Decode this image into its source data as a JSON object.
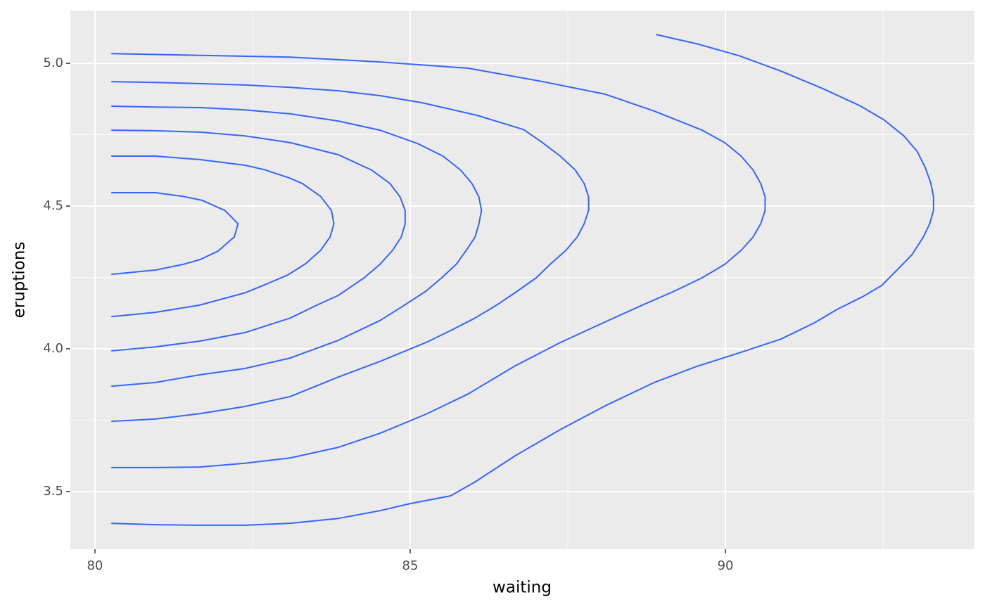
{
  "chart_data": {
    "type": "contour",
    "x_label": "waiting",
    "y_label": "eruptions",
    "color": "#3366FF",
    "xlim": [
      79.61,
      93.95
    ],
    "ylim": [
      3.298,
      5.185
    ],
    "xticks": [
      80,
      85,
      90
    ],
    "yticks": [
      3.5,
      {
        "value": 4,
        "label": "4.0"
      },
      4.5,
      {
        "value": 5,
        "label": "5.0"
      }
    ],
    "x_minor_breaks": [
      82.5,
      87.5,
      92.5
    ],
    "y_minor_breaks": [
      3.75,
      4.25,
      4.75
    ],
    "grid": true,
    "series": [
      {
        "x": [
          80.26,
          80.96,
          81.4,
          81.7,
          82.06,
          82.27,
          82.21,
          81.95,
          81.67,
          81.4,
          80.96,
          80.26
        ],
        "y": [
          4.547,
          4.547,
          4.534,
          4.52,
          4.485,
          4.438,
          4.392,
          4.342,
          4.313,
          4.296,
          4.276,
          4.261
        ]
      },
      {
        "x": [
          80.26,
          80.96,
          81.66,
          82.38,
          82.68,
          83.08,
          83.29,
          83.58,
          83.75,
          83.79,
          83.73,
          83.58,
          83.34,
          83.06,
          82.69,
          82.39,
          81.66,
          80.96,
          80.26
        ],
        "y": [
          4.675,
          4.675,
          4.663,
          4.643,
          4.628,
          4.599,
          4.579,
          4.534,
          4.485,
          4.438,
          4.392,
          4.345,
          4.298,
          4.259,
          4.224,
          4.197,
          4.153,
          4.128,
          4.113
        ]
      },
      {
        "x": [
          80.26,
          80.96,
          81.66,
          82.38,
          83.1,
          83.86,
          84.39,
          84.68,
          84.84,
          84.92,
          84.92,
          84.86,
          84.72,
          84.52,
          84.27,
          83.86,
          83.52,
          83.1,
          82.38,
          81.66,
          80.96,
          80.26
        ],
        "y": [
          4.766,
          4.764,
          4.759,
          4.746,
          4.722,
          4.68,
          4.626,
          4.579,
          4.532,
          4.485,
          4.438,
          4.392,
          4.345,
          4.296,
          4.249,
          4.187,
          4.153,
          4.108,
          4.057,
          4.027,
          4.007,
          3.993
        ]
      },
      {
        "x": [
          80.26,
          80.96,
          81.66,
          82.38,
          83.1,
          83.86,
          84.52,
          85.12,
          85.52,
          85.8,
          85.98,
          86.09,
          86.13,
          86.09,
          86.03,
          85.89,
          85.73,
          85.5,
          85.25,
          84.91,
          84.52,
          83.86,
          83.1,
          82.38,
          81.66,
          80.96,
          80.26
        ],
        "y": [
          4.85,
          4.847,
          4.845,
          4.837,
          4.823,
          4.798,
          4.766,
          4.719,
          4.675,
          4.626,
          4.579,
          4.532,
          4.485,
          4.438,
          4.392,
          4.345,
          4.296,
          4.249,
          4.202,
          4.153,
          4.099,
          4.03,
          3.968,
          3.931,
          3.909,
          3.882,
          3.869
        ]
      },
      {
        "x": [
          80.26,
          80.96,
          81.66,
          82.38,
          83.1,
          83.86,
          84.52,
          85.19,
          86.06,
          86.8,
          87.1,
          87.38,
          87.62,
          87.76,
          87.83,
          87.83,
          87.76,
          87.65,
          87.47,
          87.22,
          87.0,
          86.7,
          86.37,
          86.03,
          85.64,
          85.25,
          84.52,
          83.86,
          83.1,
          82.38,
          81.66,
          80.96,
          80.26
        ],
        "y": [
          4.936,
          4.933,
          4.929,
          4.924,
          4.916,
          4.904,
          4.887,
          4.862,
          4.818,
          4.768,
          4.722,
          4.675,
          4.626,
          4.579,
          4.532,
          4.485,
          4.438,
          4.392,
          4.345,
          4.296,
          4.249,
          4.202,
          4.153,
          4.108,
          4.064,
          4.022,
          3.956,
          3.901,
          3.833,
          3.798,
          3.773,
          3.754,
          3.746
        ]
      },
      {
        "x": [
          80.26,
          83.1,
          84.52,
          85.92,
          87.06,
          88.09,
          88.87,
          89.63,
          89.99,
          90.25,
          90.44,
          90.56,
          90.63,
          90.63,
          90.56,
          90.44,
          90.25,
          89.99,
          89.63,
          89.19,
          88.68,
          88.09,
          87.38,
          86.67,
          85.92,
          85.25,
          84.52,
          83.86,
          83.1,
          82.38,
          81.66,
          80.96,
          80.26
        ],
        "y": [
          5.034,
          5.022,
          5.005,
          4.983,
          4.938,
          4.892,
          4.833,
          4.766,
          4.722,
          4.675,
          4.626,
          4.579,
          4.532,
          4.485,
          4.438,
          4.392,
          4.345,
          4.296,
          4.249,
          4.202,
          4.153,
          4.094,
          4.022,
          3.941,
          3.842,
          3.771,
          3.704,
          3.655,
          3.618,
          3.599,
          3.586,
          3.584,
          3.584
        ]
      },
      {
        "x": [
          88.9,
          89.54,
          90.21,
          90.88,
          91.55,
          92.13,
          92.51,
          92.83,
          93.04,
          93.17,
          93.26,
          93.3,
          93.3,
          93.24,
          93.14,
          92.96,
          92.73,
          92.48,
          92.17,
          91.77,
          91.41,
          90.88,
          90.21,
          89.54,
          88.87,
          88.09,
          87.38,
          86.67,
          86.03,
          85.64,
          85.0,
          84.52,
          83.86,
          83.1,
          82.38,
          81.66,
          80.96,
          80.26
        ],
        "y": [
          5.101,
          5.069,
          5.027,
          4.973,
          4.911,
          4.852,
          4.803,
          4.746,
          4.692,
          4.635,
          4.579,
          4.532,
          4.485,
          4.438,
          4.392,
          4.33,
          4.278,
          4.222,
          4.182,
          4.138,
          4.091,
          4.034,
          3.985,
          3.938,
          3.882,
          3.8,
          3.717,
          3.626,
          3.534,
          3.485,
          3.458,
          3.433,
          3.406,
          3.389,
          3.382,
          3.382,
          3.384,
          3.389
        ]
      }
    ]
  }
}
